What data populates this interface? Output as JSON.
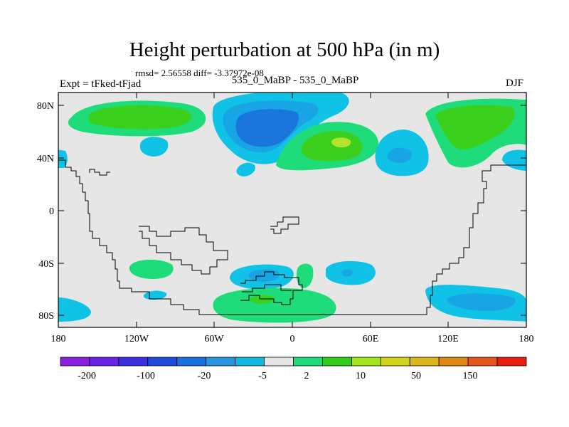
{
  "header": {
    "title": "Height perturbation at 500 hPa (in m)",
    "stats": "rmsd= 2.56558 diff= -3.37972e-08",
    "expt": "Expt = tFked-tFjad",
    "center_label": "535_0_MaBP - 535_0_MaBP",
    "season": "DJF"
  },
  "axes": {
    "lat_labels": [
      "80N",
      "40N",
      "0",
      "40S",
      "80S"
    ],
    "lon_labels": [
      "180",
      "120W",
      "60W",
      "0",
      "60E",
      "120E",
      "180"
    ]
  },
  "colorbar": {
    "labels": [
      "-200",
      "-100",
      "-20",
      "-5",
      "2",
      "10",
      "50",
      "150"
    ],
    "colors": [
      "#8a1fe0",
      "#6a22e6",
      "#3b2ee0",
      "#1f48dd",
      "#1870e0",
      "#2795e0",
      "#0fb8e0",
      "#e6e6e6",
      "#1edc78",
      "#33cc1a",
      "#a4e61a",
      "#d2d41a",
      "#dcb51a",
      "#e08614",
      "#e65519",
      "#e81c10"
    ]
  },
  "colors": {
    "background_field": "#e6e6e6",
    "light_blue": "#10c2e6",
    "mid_blue": "#17a5e6",
    "dark_blue": "#1b76db",
    "light_green": "#1fdc7b",
    "mid_green": "#3cd01e",
    "yellow_green": "#b6e42e",
    "coastline": "#000000"
  }
}
